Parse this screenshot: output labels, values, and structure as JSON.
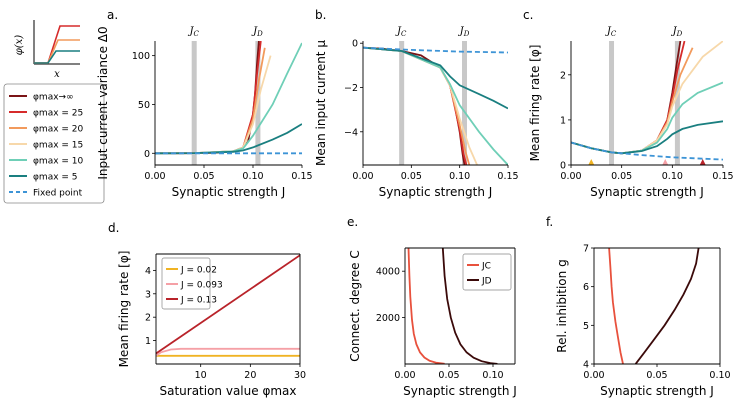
{
  "colors": {
    "inf": "#7b1416",
    "c25": "#d62b2b",
    "c20": "#f29a5c",
    "c15": "#f7d8aa",
    "c10": "#6fcfb7",
    "c5": "#1a7f80",
    "fixed": "#3d94d6",
    "band": "#c8c8c8",
    "j002": "#f0b323",
    "j0093": "#f5a0a6",
    "j013": "#b9232a",
    "jc": "#e8513d",
    "jd": "#3b0a0a"
  },
  "inset": {
    "ylabel": "φ(x)",
    "xlabel": "x"
  },
  "legend": {
    "items": [
      {
        "label": "φmax→∞",
        "series": "inf"
      },
      {
        "label": "φmax = 25",
        "series": "c25"
      },
      {
        "label": "φmax = 20",
        "series": "c20"
      },
      {
        "label": "φmax = 15",
        "series": "c15"
      },
      {
        "label": "φmax = 10",
        "series": "c10"
      },
      {
        "label": "φmax = 5",
        "series": "c5"
      },
      {
        "label": "Fixed point",
        "series": "fixed"
      }
    ]
  },
  "chart_data": [
    {
      "id": "a",
      "panel": "a.",
      "type": "line",
      "xlabel": "Synaptic strength J",
      "ylabel": "Input current variance Δ0",
      "xlim": [
        0,
        0.15
      ],
      "ylim": [
        -12,
        115
      ],
      "xticks": [
        "0.00",
        "0.05",
        "0.10",
        "0.15"
      ],
      "xtick_values": [
        0,
        0.05,
        0.1,
        0.15
      ],
      "yticks": [
        "0",
        "50",
        "100"
      ],
      "ytick_values": [
        0,
        50,
        100
      ],
      "bands": [
        {
          "label": "JC",
          "x": 0.04
        },
        {
          "label": "JD",
          "x": 0.105
        }
      ],
      "series": [
        {
          "name": "φmax→∞",
          "key": "inf",
          "x": [
            0,
            0.02,
            0.04,
            0.06,
            0.08,
            0.09,
            0.095,
            0.1,
            0.102,
            0.104,
            0.106
          ],
          "y": [
            0,
            0,
            0.2,
            0.5,
            2,
            6,
            12,
            40,
            60,
            90,
            115
          ]
        },
        {
          "name": "φmax=25",
          "key": "c25",
          "x": [
            0,
            0.04,
            0.08,
            0.09,
            0.1,
            0.104,
            0.108
          ],
          "y": [
            0,
            0.2,
            2,
            6,
            40,
            80,
            115
          ]
        },
        {
          "name": "φmax=20",
          "key": "c20",
          "x": [
            0,
            0.04,
            0.08,
            0.09,
            0.1,
            0.106,
            0.112
          ],
          "y": [
            0,
            0.2,
            2,
            6,
            35,
            75,
            108
          ]
        },
        {
          "name": "φmax=15",
          "key": "c15",
          "x": [
            0,
            0.04,
            0.08,
            0.09,
            0.1,
            0.108,
            0.118
          ],
          "y": [
            0,
            0.2,
            2,
            6,
            30,
            65,
            100
          ]
        },
        {
          "name": "φmax=10",
          "key": "c10",
          "x": [
            0,
            0.04,
            0.08,
            0.09,
            0.1,
            0.12,
            0.135,
            0.15
          ],
          "y": [
            0,
            0.2,
            2,
            5,
            18,
            50,
            82,
            113
          ]
        },
        {
          "name": "φmax=5",
          "key": "c5",
          "x": [
            0,
            0.04,
            0.08,
            0.09,
            0.1,
            0.12,
            0.135,
            0.15
          ],
          "y": [
            0,
            0.2,
            1.5,
            3,
            6,
            14,
            21,
            30
          ]
        },
        {
          "name": "Fixed point",
          "key": "fixed",
          "dashed": true,
          "x": [
            0,
            0.05,
            0.1,
            0.15
          ],
          "y": [
            0,
            0,
            0,
            0
          ]
        }
      ]
    },
    {
      "id": "b",
      "panel": "b.",
      "type": "line",
      "xlabel": "Synaptic strength J",
      "ylabel": "Mean input current μ",
      "xlim": [
        0,
        0.15
      ],
      "ylim": [
        -5.5,
        0.1
      ],
      "xticks": [
        "0.00",
        "0.05",
        "0.10",
        "0.15"
      ],
      "xtick_values": [
        0,
        0.05,
        0.1,
        0.15
      ],
      "yticks": [
        "0",
        "−2",
        "−4"
      ],
      "ytick_values": [
        0,
        -2,
        -4
      ],
      "bands": [
        {
          "label": "JC",
          "x": 0.04
        },
        {
          "label": "JD",
          "x": 0.105
        }
      ],
      "series": [
        {
          "name": "φmax→∞",
          "key": "inf",
          "x": [
            0,
            0.02,
            0.04,
            0.06,
            0.08,
            0.09,
            0.095,
            0.1,
            0.103,
            0.105
          ],
          "y": [
            -0.2,
            -0.25,
            -0.35,
            -0.55,
            -1.1,
            -1.9,
            -2.8,
            -4.0,
            -5.0,
            -5.5
          ]
        },
        {
          "name": "φmax=25",
          "key": "c25",
          "x": [
            0,
            0.04,
            0.08,
            0.09,
            0.1,
            0.104,
            0.107
          ],
          "y": [
            -0.2,
            -0.35,
            -1.1,
            -1.9,
            -3.9,
            -5.0,
            -5.5
          ]
        },
        {
          "name": "φmax=20",
          "key": "c20",
          "x": [
            0,
            0.04,
            0.08,
            0.09,
            0.1,
            0.106,
            0.11
          ],
          "y": [
            -0.2,
            -0.35,
            -1.1,
            -1.9,
            -3.7,
            -4.9,
            -5.5
          ]
        },
        {
          "name": "φmax=15",
          "key": "c15",
          "x": [
            0,
            0.04,
            0.08,
            0.09,
            0.1,
            0.11,
            0.118
          ],
          "y": [
            -0.2,
            -0.35,
            -1.1,
            -1.9,
            -3.4,
            -4.7,
            -5.5
          ]
        },
        {
          "name": "φmax=10",
          "key": "c10",
          "x": [
            0,
            0.04,
            0.08,
            0.09,
            0.1,
            0.12,
            0.135,
            0.15
          ],
          "y": [
            -0.2,
            -0.35,
            -1.1,
            -1.85,
            -2.8,
            -4.0,
            -4.8,
            -5.5
          ]
        },
        {
          "name": "φmax=5",
          "key": "c5",
          "x": [
            0,
            0.04,
            0.08,
            0.09,
            0.1,
            0.12,
            0.135,
            0.15
          ],
          "y": [
            -0.2,
            -0.35,
            -1.0,
            -1.5,
            -1.9,
            -2.3,
            -2.6,
            -2.95
          ]
        },
        {
          "name": "Fixed point",
          "key": "fixed",
          "dashed": true,
          "x": [
            0,
            0.05,
            0.1,
            0.15
          ],
          "y": [
            -0.2,
            -0.3,
            -0.38,
            -0.42
          ]
        }
      ]
    },
    {
      "id": "c",
      "panel": "c.",
      "type": "line",
      "xlabel": "Synaptic strength J",
      "ylabel": "Mean firing rate [φ]",
      "xlim": [
        0,
        0.15
      ],
      "ylim": [
        0,
        2.75
      ],
      "xticks": [
        "0.00",
        "0.05",
        "0.10",
        "0.15"
      ],
      "xtick_values": [
        0,
        0.05,
        0.1,
        0.15
      ],
      "yticks": [
        "0",
        "1",
        "2"
      ],
      "ytick_values": [
        0,
        1,
        2
      ],
      "bands": [
        {
          "label": "JC",
          "x": 0.04
        },
        {
          "label": "JD",
          "x": 0.105
        }
      ],
      "markers": [
        {
          "x": 0.02,
          "key": "j002"
        },
        {
          "x": 0.093,
          "key": "j0093"
        },
        {
          "x": 0.13,
          "key": "j013"
        }
      ],
      "series": [
        {
          "name": "φmax→∞",
          "key": "inf",
          "x": [
            0,
            0.02,
            0.04,
            0.05,
            0.07,
            0.085,
            0.095,
            0.1,
            0.104,
            0.108
          ],
          "y": [
            0.5,
            0.37,
            0.28,
            0.26,
            0.32,
            0.55,
            1.0,
            1.6,
            2.2,
            2.75
          ]
        },
        {
          "name": "φmax=25",
          "key": "c25",
          "x": [
            0,
            0.02,
            0.04,
            0.05,
            0.07,
            0.085,
            0.095,
            0.1,
            0.105,
            0.112
          ],
          "y": [
            0.5,
            0.37,
            0.28,
            0.26,
            0.32,
            0.55,
            1.0,
            1.5,
            2.1,
            2.75
          ]
        },
        {
          "name": "φmax=20",
          "key": "c20",
          "x": [
            0,
            0.02,
            0.04,
            0.05,
            0.07,
            0.085,
            0.095,
            0.1,
            0.108,
            0.12
          ],
          "y": [
            0.5,
            0.37,
            0.28,
            0.26,
            0.32,
            0.55,
            0.95,
            1.4,
            2.0,
            2.6
          ]
        },
        {
          "name": "φmax=15",
          "key": "c15",
          "x": [
            0,
            0.02,
            0.04,
            0.05,
            0.07,
            0.085,
            0.095,
            0.1,
            0.11,
            0.13,
            0.15
          ],
          "y": [
            0.5,
            0.37,
            0.28,
            0.26,
            0.32,
            0.55,
            0.9,
            1.3,
            1.8,
            2.4,
            2.75
          ]
        },
        {
          "name": "φmax=10",
          "key": "c10",
          "x": [
            0,
            0.02,
            0.04,
            0.05,
            0.07,
            0.085,
            0.095,
            0.1,
            0.11,
            0.125,
            0.15
          ],
          "y": [
            0.5,
            0.37,
            0.28,
            0.26,
            0.32,
            0.5,
            0.8,
            1.05,
            1.35,
            1.6,
            1.83
          ]
        },
        {
          "name": "φmax=5",
          "key": "c5",
          "x": [
            0,
            0.02,
            0.04,
            0.05,
            0.07,
            0.085,
            0.095,
            0.1,
            0.11,
            0.125,
            0.15
          ],
          "y": [
            0.5,
            0.37,
            0.28,
            0.26,
            0.31,
            0.42,
            0.58,
            0.68,
            0.8,
            0.89,
            0.97
          ]
        },
        {
          "name": "Fixed point",
          "key": "fixed",
          "dashed": true,
          "x": [
            0,
            0.02,
            0.04,
            0.05,
            0.07,
            0.1,
            0.15
          ],
          "y": [
            0.5,
            0.37,
            0.28,
            0.26,
            0.22,
            0.17,
            0.12
          ]
        }
      ]
    },
    {
      "id": "d",
      "panel": "d.",
      "type": "line",
      "xlabel": "Saturation value φmax",
      "ylabel": "Mean firing rate [φ]",
      "xlim": [
        1,
        30
      ],
      "ylim": [
        0,
        4.7
      ],
      "xticks": [
        "10",
        "20",
        "30"
      ],
      "xtick_values": [
        10,
        20,
        30
      ],
      "yticks": [
        "1",
        "2",
        "3",
        "4"
      ],
      "ytick_values": [
        1,
        2,
        3,
        4
      ],
      "legend_items": [
        "J = 0.02",
        "J = 0.093",
        "J = 0.13"
      ],
      "series": [
        {
          "name": "J = 0.02",
          "key": "j002",
          "x": [
            1,
            30
          ],
          "y": [
            0.35,
            0.35
          ]
        },
        {
          "name": "J = 0.093",
          "key": "j0093",
          "x": [
            1,
            2,
            4,
            6,
            30
          ],
          "y": [
            0.35,
            0.5,
            0.62,
            0.65,
            0.65
          ]
        },
        {
          "name": "J = 0.13",
          "key": "j013",
          "x": [
            1,
            30
          ],
          "y": [
            0.45,
            4.65
          ]
        }
      ]
    },
    {
      "id": "e",
      "panel": "e.",
      "type": "line",
      "xlabel": "Synaptic strength J",
      "ylabel": "Connect. degree C",
      "xlim": [
        0,
        0.125
      ],
      "ylim": [
        0,
        5000
      ],
      "xticks": [
        "0.00",
        "0.05",
        "0.10"
      ],
      "xtick_values": [
        0,
        0.05,
        0.1
      ],
      "yticks": [
        "2000",
        "4000"
      ],
      "ytick_values": [
        2000,
        4000
      ],
      "legend_items": [
        "JC",
        "JD"
      ],
      "series": [
        {
          "name": "JC",
          "key": "jc",
          "x": [
            0.004,
            0.005,
            0.006,
            0.008,
            0.01,
            0.013,
            0.017,
            0.022,
            0.028,
            0.035,
            0.045
          ],
          "y": [
            5000,
            3800,
            2900,
            1900,
            1300,
            850,
            500,
            280,
            140,
            60,
            10
          ]
        },
        {
          "name": "JD",
          "key": "jd",
          "x": [
            0.043,
            0.045,
            0.048,
            0.052,
            0.057,
            0.063,
            0.07,
            0.078,
            0.087,
            0.097,
            0.105
          ],
          "y": [
            5000,
            3800,
            2800,
            2000,
            1350,
            850,
            500,
            270,
            120,
            40,
            5
          ]
        }
      ]
    },
    {
      "id": "f",
      "panel": "f.",
      "type": "line",
      "xlabel": "Synaptic strength J",
      "ylabel": "Rel. inhibition g",
      "xlim": [
        0,
        0.1
      ],
      "ylim": [
        4,
        7
      ],
      "xticks": [
        "0.00",
        "0.05",
        "0.10"
      ],
      "xtick_values": [
        0,
        0.05,
        0.1
      ],
      "yticks": [
        "4",
        "5",
        "6",
        "7"
      ],
      "ytick_values": [
        4,
        5,
        6,
        7
      ],
      "series": [
        {
          "name": "JC",
          "key": "jc",
          "x": [
            0.012,
            0.013,
            0.014,
            0.015,
            0.017,
            0.019,
            0.021,
            0.023
          ],
          "y": [
            7,
            6.5,
            6.0,
            5.6,
            5.1,
            4.7,
            4.3,
            4.0
          ]
        },
        {
          "name": "JD",
          "key": "jd",
          "x": [
            0.033,
            0.04,
            0.048,
            0.056,
            0.064,
            0.071,
            0.077,
            0.081,
            0.083
          ],
          "y": [
            4.0,
            4.3,
            4.65,
            5.0,
            5.4,
            5.8,
            6.2,
            6.6,
            7.0
          ]
        }
      ]
    }
  ]
}
